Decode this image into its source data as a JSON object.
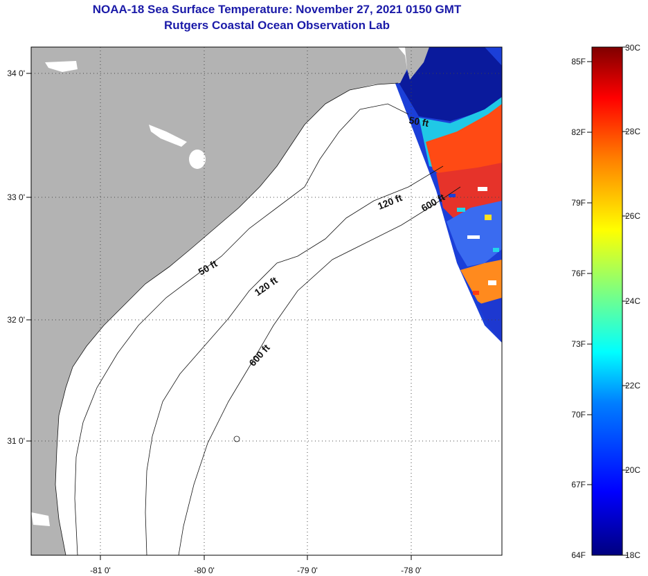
{
  "title": {
    "line1": "NOAA-18 Sea Surface Temperature:  November 27, 2021 0150 GMT",
    "line2": "Rutgers Coastal Ocean Observation Lab"
  },
  "axes": {
    "longitude_ticks": [
      {
        "value": -81,
        "label": "-81 0'"
      },
      {
        "value": -80,
        "label": "-80 0'"
      },
      {
        "value": -79,
        "label": "-79 0'"
      },
      {
        "value": -78,
        "label": "-78 0'"
      }
    ],
    "latitude_ticks": [
      {
        "value": 34,
        "label": "34 0'"
      },
      {
        "value": 33,
        "label": "33 0'"
      },
      {
        "value": 32,
        "label": "32 0'"
      },
      {
        "value": 31,
        "label": "31 0'"
      }
    ],
    "lon_range": [
      -81.7,
      -77.2
    ],
    "lat_range": [
      30.2,
      34.2
    ]
  },
  "isobaths": [
    {
      "label": "50 ft"
    },
    {
      "label": "120 ft"
    },
    {
      "label": "600 ft"
    }
  ],
  "colorbar": {
    "fahrenheit": [
      "85F",
      "82F",
      "79F",
      "76F",
      "73F",
      "70F",
      "67F",
      "64F"
    ],
    "celsius": [
      "30C",
      "28C",
      "26C",
      "24C",
      "22C",
      "20C",
      "18C"
    ],
    "range_c": [
      18,
      30
    ],
    "colors": [
      "#00007f",
      "#0000ff",
      "#007fff",
      "#00ffff",
      "#7fff7f",
      "#ffff00",
      "#ff7f00",
      "#ff0000",
      "#7f0000"
    ]
  },
  "colors": {
    "land": "#b3b3b3",
    "title": "#1a1aa8"
  }
}
